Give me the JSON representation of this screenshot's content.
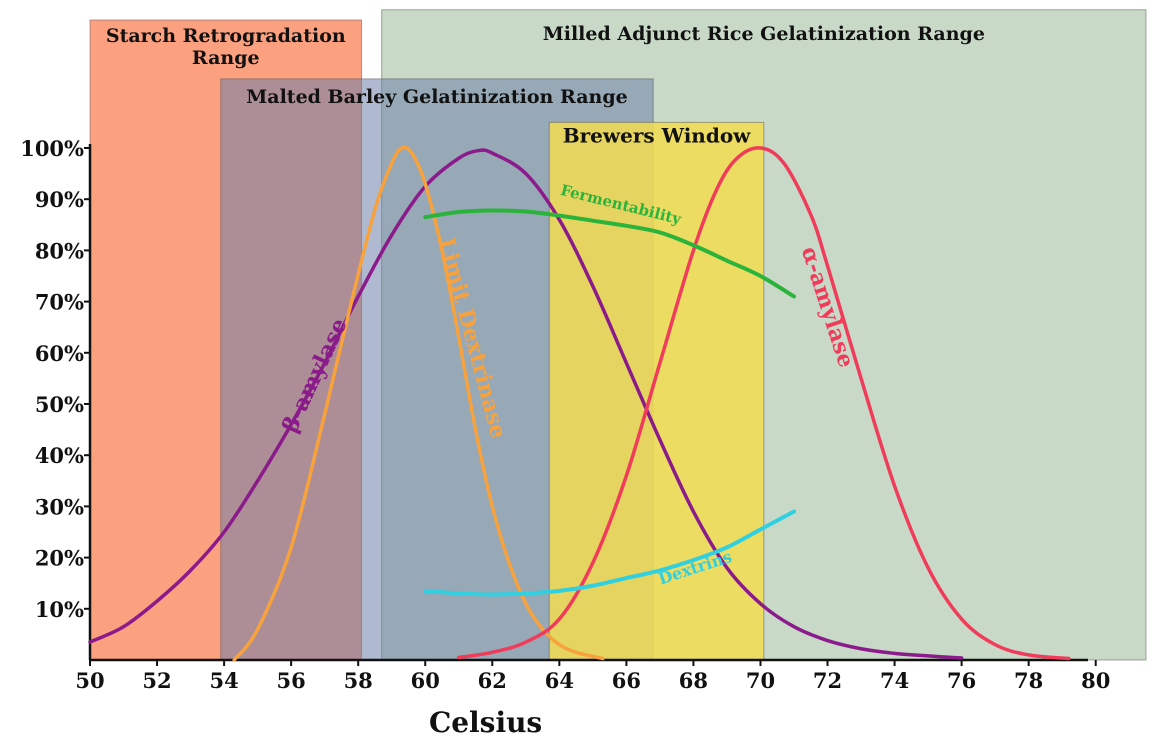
{
  "chart_data": {
    "type": "line",
    "title": "",
    "xlabel": "Celsius",
    "ylabel": "",
    "xlim": [
      50,
      81.5
    ],
    "ylim": [
      0,
      100
    ],
    "x_ticks": [
      50,
      52,
      54,
      56,
      58,
      60,
      62,
      64,
      66,
      68,
      70,
      72,
      74,
      76,
      78,
      80
    ],
    "x_tick_labels": [
      "50",
      "52",
      "54",
      "56",
      "58",
      "60",
      "62",
      "64",
      "66",
      "68",
      "70",
      "72",
      "74",
      "76",
      "78",
      "80"
    ],
    "y_ticks": [
      10,
      20,
      30,
      40,
      50,
      60,
      70,
      80,
      90,
      100
    ],
    "y_tick_labels": [
      "10%",
      "20%",
      "30%",
      "40%",
      "50%",
      "60%",
      "70%",
      "80%",
      "90%",
      "100%"
    ],
    "grid": false,
    "legend": "none",
    "ranges": [
      {
        "name": "starch-retrogradation",
        "label": "Starch Retrogradation Range",
        "x_start": 50,
        "x_end": 58.1,
        "top": 125,
        "color": "#fa8c64"
      },
      {
        "name": "milled-adjunct-rice",
        "label": "Milled Adjunct Rice Gelatinization Range",
        "x_start": 58.7,
        "x_end": 81.5,
        "top": 127,
        "color": "#c6d7c5"
      },
      {
        "name": "malted-barley",
        "label": "Malted Barley Gelatinization Range",
        "x_start": 53.9,
        "x_end": 66.8,
        "top": 113.5,
        "color": "#6e7fa8"
      },
      {
        "name": "brewers-window",
        "label": "Brewers Window",
        "x_start": 63.7,
        "x_end": 70.1,
        "top": 105,
        "color": "#f2dc50"
      }
    ],
    "series": [
      {
        "name": "β-amylase",
        "color": "#8b1a8b",
        "x": [
          50,
          51,
          52,
          53,
          54,
          55,
          56,
          57,
          58,
          59,
          60,
          61,
          61.6,
          62,
          63,
          64,
          65,
          66,
          67,
          68,
          69,
          70,
          71,
          72,
          73,
          74,
          75,
          76
        ],
        "y": [
          3.5,
          6.5,
          11.5,
          17.5,
          25,
          35,
          46,
          58,
          71,
          83,
          92.5,
          98,
          99.5,
          99,
          95,
          86,
          73,
          58,
          43,
          29,
          18,
          11,
          6.5,
          3.8,
          2.2,
          1.3,
          0.8,
          0.4
        ]
      },
      {
        "name": "Limit Dextrinase",
        "color": "#f7a23c",
        "x": [
          54.3,
          55,
          56,
          57,
          57.8,
          58.5,
          59,
          59.3,
          59.6,
          60,
          60.5,
          61,
          61.5,
          62,
          62.5,
          63,
          63.5,
          64,
          64.5,
          65,
          65.3
        ],
        "y": [
          0,
          6,
          22,
          48,
          70,
          88,
          97,
          100,
          99,
          93,
          80,
          63,
          45,
          30,
          19,
          11,
          6,
          3,
          1.5,
          0.7,
          0.3
        ]
      },
      {
        "name": "α-amylase",
        "color": "#f03c5a",
        "x": [
          61,
          62,
          63,
          64,
          65,
          66,
          67,
          68,
          68.7,
          69.3,
          70,
          70.7,
          71.5,
          72,
          73,
          74,
          75,
          76,
          77,
          78,
          79.2
        ],
        "y": [
          0.5,
          1.5,
          3.5,
          8,
          19,
          36,
          58,
          80,
          92,
          98,
          100,
          97,
          87,
          77,
          55,
          34,
          18,
          8,
          3,
          1,
          0.3
        ]
      },
      {
        "name": "Fermentability",
        "color": "#2bb43c",
        "x": [
          60,
          61,
          62,
          63,
          64,
          65,
          66,
          67,
          68,
          69,
          70,
          71
        ],
        "y": [
          86.5,
          87.5,
          87.8,
          87.6,
          86.8,
          85.8,
          84.8,
          83.5,
          81,
          78,
          75,
          71
        ]
      },
      {
        "name": "Dextrins",
        "color": "#30d0e0",
        "x": [
          60,
          61,
          62,
          63,
          64,
          65,
          66,
          67,
          68,
          69,
          70,
          71
        ],
        "y": [
          13.5,
          13,
          12.8,
          13,
          13.5,
          14.5,
          16,
          17.5,
          19.5,
          22,
          25.5,
          29
        ]
      }
    ],
    "curve_labels": [
      {
        "text": "β-amylase",
        "series": "β-amylase",
        "x": 56.9,
        "y": 55,
        "rotate": -65,
        "size": 22
      },
      {
        "text": "Limit Dextrinase",
        "series": "Limit Dextrinase",
        "x": 61.2,
        "y": 62.5,
        "rotate": 75,
        "size": 22
      },
      {
        "text": "α-amylase",
        "series": "α-amylase",
        "x": 71.8,
        "y": 68.5,
        "rotate": 72,
        "size": 22
      },
      {
        "text": "Fermentability",
        "series": "Fermentability",
        "x": 65.8,
        "y": 88,
        "rotate": 14,
        "size": 15
      },
      {
        "text": "Dextrins",
        "series": "Dextrins",
        "x": 68.1,
        "y": 17,
        "rotate": -18,
        "size": 16
      }
    ]
  }
}
